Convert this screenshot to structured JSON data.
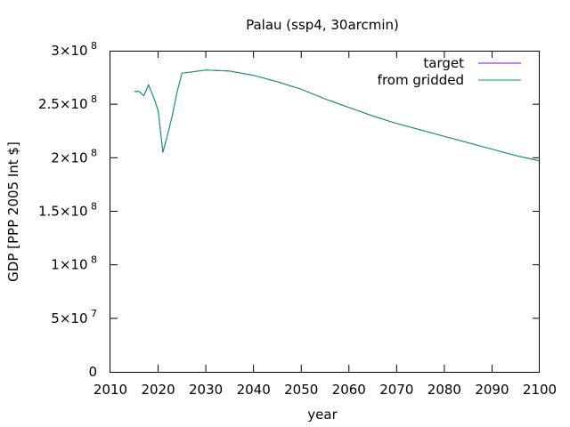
{
  "chart_data": {
    "type": "line",
    "title": "Palau (ssp4, 30arcmin)",
    "xlabel": "year",
    "ylabel": "GDP [PPP 2005 Int $]",
    "xlim": [
      2010,
      2100
    ],
    "ylim": [
      0,
      300000000
    ],
    "grid": false,
    "legend_position": "top-right",
    "x_ticks": [
      2010,
      2020,
      2030,
      2040,
      2050,
      2060,
      2070,
      2080,
      2090,
      2100
    ],
    "y_ticks": [
      {
        "value": 0,
        "mant": "0",
        "exp": ""
      },
      {
        "value": 50000000,
        "mant": "5×10",
        "exp": "7"
      },
      {
        "value": 100000000,
        "mant": "1×10",
        "exp": "8"
      },
      {
        "value": 150000000,
        "mant": "1.5×10",
        "exp": "8"
      },
      {
        "value": 200000000,
        "mant": "2×10",
        "exp": "8"
      },
      {
        "value": 250000000,
        "mant": "2.5×10",
        "exp": "8"
      },
      {
        "value": 300000000,
        "mant": "3×10",
        "exp": "8"
      }
    ],
    "x": [
      2015,
      2016,
      2017,
      2018,
      2019,
      2020,
      2021,
      2022,
      2023,
      2024,
      2025,
      2030,
      2035,
      2040,
      2045,
      2050,
      2055,
      2060,
      2065,
      2070,
      2075,
      2080,
      2085,
      2090,
      2095,
      2100
    ],
    "series": [
      {
        "name": "target",
        "color": "#9400d3",
        "values": [
          262000000,
          262000000,
          258000000,
          268000000,
          257000000,
          244000000,
          205000000,
          222000000,
          240000000,
          262000000,
          279000000,
          282000000,
          281000000,
          277000000,
          271000000,
          264000000,
          255000000,
          247000000,
          239000000,
          232000000,
          226000000,
          220000000,
          214000000,
          208000000,
          202000000,
          197000000
        ]
      },
      {
        "name": "from gridded",
        "color": "#009e73",
        "values": [
          262000000,
          262000000,
          258000000,
          268000000,
          257000000,
          244000000,
          205000000,
          222000000,
          240000000,
          262000000,
          279000000,
          282000000,
          281000000,
          277000000,
          271000000,
          264000000,
          255000000,
          247000000,
          239000000,
          232000000,
          226000000,
          220000000,
          214000000,
          208000000,
          202000000,
          197000000
        ]
      }
    ]
  }
}
